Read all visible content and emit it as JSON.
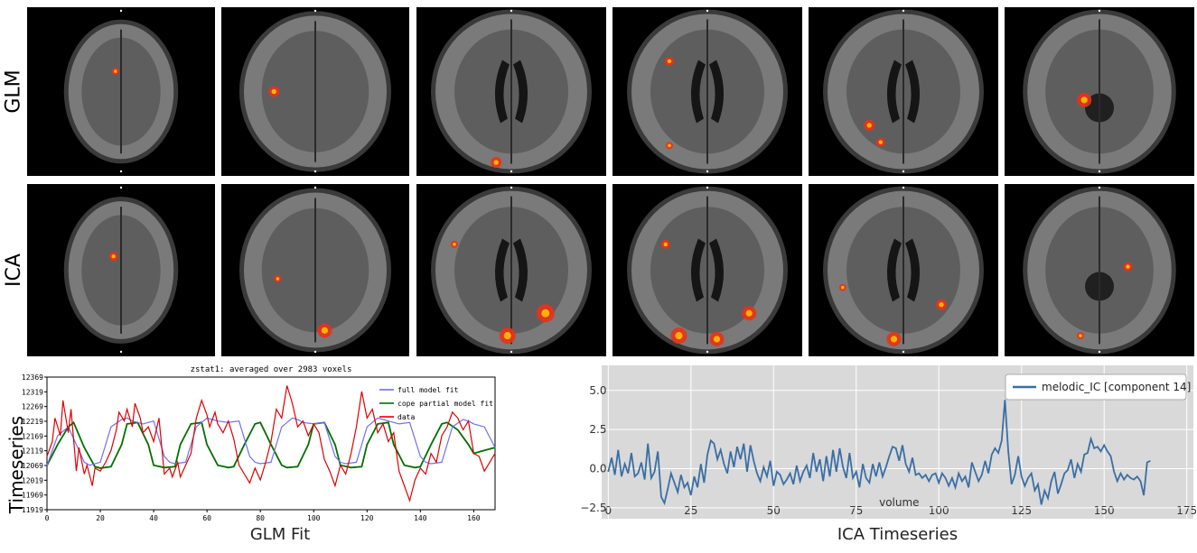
{
  "figure": {
    "row_labels": [
      "GLM",
      "ICA"
    ],
    "captions": {
      "left": "GLM Fit",
      "right": "ICA Timeseries"
    },
    "side_label": "Timeseries"
  },
  "brain_panels": {
    "columns": 6,
    "rows": [
      "GLM",
      "ICA"
    ]
  },
  "colors": {
    "activation": "#e8321a",
    "activation_hot": "#ffb000",
    "glm_full_fit": "#7070f0",
    "glm_cope_fit": "#007000",
    "glm_data": "#e00000",
    "ica_line": "#3a6ea5",
    "ica_bg": "#d9d9d9"
  },
  "chart_data": [
    {
      "type": "line",
      "title": "zstat1: averaged over 2983 voxels",
      "xlabel": "",
      "ylabel": "",
      "xlim": [
        0,
        168
      ],
      "ylim": [
        11919,
        12369
      ],
      "xticks": [
        0,
        20,
        40,
        60,
        80,
        100,
        120,
        140,
        160
      ],
      "yticks": [
        11919,
        11969,
        12019,
        12069,
        12119,
        12169,
        12219,
        12269,
        12319,
        12369
      ],
      "legend_placement": "top-right",
      "grid": false,
      "series": [
        {
          "name": "full model fit",
          "color": "#7070f0",
          "x": [
            0,
            4,
            8,
            12,
            14,
            16,
            20,
            24,
            28,
            30,
            32,
            36,
            40,
            44,
            46,
            48,
            52,
            56,
            60,
            62,
            64,
            68,
            72,
            76,
            78,
            80,
            84,
            88,
            92,
            94,
            96,
            100,
            104,
            108,
            110,
            112,
            116,
            120,
            124,
            126,
            128,
            132,
            136,
            140,
            142,
            144,
            148,
            152,
            156,
            158,
            160,
            164,
            168
          ],
          "y": [
            12069,
            12170,
            12200,
            12120,
            12080,
            12070,
            12080,
            12200,
            12225,
            12230,
            12220,
            12210,
            12220,
            12100,
            12080,
            12075,
            12080,
            12200,
            12230,
            12225,
            12220,
            12215,
            12220,
            12100,
            12080,
            12075,
            12080,
            12200,
            12230,
            12225,
            12215,
            12210,
            12215,
            12100,
            12080,
            12075,
            12080,
            12200,
            12230,
            12225,
            12220,
            12210,
            12215,
            12100,
            12080,
            12075,
            12080,
            12200,
            12225,
            12220,
            12210,
            12200,
            12130
          ]
        },
        {
          "name": "cope partial model fit",
          "color": "#007000",
          "x": [
            0,
            4,
            8,
            10,
            14,
            18,
            20,
            24,
            28,
            30,
            34,
            38,
            40,
            44,
            48,
            50,
            54,
            58,
            60,
            64,
            68,
            70,
            74,
            78,
            80,
            84,
            88,
            90,
            94,
            98,
            100,
            104,
            108,
            110,
            114,
            118,
            120,
            124,
            128,
            130,
            134,
            138,
            140,
            144,
            148,
            150,
            154,
            158,
            160,
            164,
            168
          ],
          "y": [
            12069,
            12140,
            12200,
            12215,
            12130,
            12065,
            12060,
            12065,
            12140,
            12210,
            12215,
            12140,
            12070,
            12062,
            12065,
            12140,
            12210,
            12215,
            12140,
            12070,
            12062,
            12065,
            12140,
            12210,
            12215,
            12140,
            12070,
            12062,
            12065,
            12140,
            12210,
            12215,
            12140,
            12070,
            12062,
            12065,
            12140,
            12210,
            12215,
            12140,
            12070,
            12062,
            12065,
            12140,
            12210,
            12215,
            12190,
            12140,
            12110,
            12120,
            12130
          ]
        },
        {
          "name": "data",
          "color": "#e00000",
          "x": [
            0,
            2,
            3,
            5,
            6,
            8,
            9,
            11,
            12,
            14,
            15,
            17,
            18,
            20,
            22,
            24,
            26,
            27,
            29,
            30,
            32,
            33,
            35,
            36,
            38,
            40,
            42,
            44,
            46,
            47,
            49,
            50,
            52,
            54,
            56,
            58,
            60,
            61,
            63,
            64,
            66,
            68,
            70,
            72,
            74,
            76,
            78,
            80,
            82,
            84,
            86,
            88,
            90,
            92,
            94,
            96,
            98,
            100,
            102,
            104,
            106,
            108,
            110,
            112,
            114,
            116,
            118,
            120,
            122,
            124,
            126,
            128,
            130,
            132,
            134,
            136,
            138,
            140,
            142,
            144,
            146,
            148,
            150,
            152,
            154,
            156,
            158,
            160,
            162,
            164,
            166,
            168
          ],
          "y": [
            12100,
            12150,
            12230,
            12170,
            12290,
            12180,
            12260,
            12050,
            12130,
            12040,
            12070,
            12000,
            12060,
            12050,
            12080,
            12120,
            12190,
            12250,
            12220,
            12260,
            12200,
            12280,
            12230,
            12180,
            12200,
            12150,
            12230,
            12040,
            12060,
            12030,
            12080,
            12030,
            12070,
            12110,
            12230,
            12290,
            12240,
            12200,
            12250,
            12210,
            12180,
            12220,
            12160,
            12070,
            12040,
            12010,
            12060,
            12020,
            12080,
            12150,
            12260,
            12230,
            12340,
            12280,
            12200,
            12220,
            12170,
            12210,
            12180,
            12090,
            12050,
            12000,
            12070,
            12040,
            12110,
            12200,
            12320,
            12230,
            12260,
            12180,
            12210,
            12150,
            12180,
            12050,
            12000,
            11950,
            12020,
            12060,
            12040,
            12110,
            12080,
            12170,
            12200,
            12250,
            12230,
            12190,
            12220,
            12110,
            12100,
            12050,
            12080,
            12110
          ]
        }
      ]
    },
    {
      "type": "line",
      "title": "",
      "xlabel": "volume",
      "ylabel": "",
      "xlim": [
        -2,
        177
      ],
      "ylim": [
        -3.2,
        6.6
      ],
      "xticks": [
        0,
        25,
        50,
        75,
        100,
        125,
        150,
        175
      ],
      "yticks": [
        -2.5,
        0.0,
        2.5,
        5.0
      ],
      "ytick_labels": [
        "−2.5",
        "0.0",
        "2.5",
        "5.0"
      ],
      "legend_placement": "top-right",
      "grid": true,
      "series": [
        {
          "name": "melodic_IC [component 14]",
          "color": "#3a6ea5",
          "y": [
            -0.2,
            0.7,
            -0.4,
            1.2,
            -0.5,
            0.3,
            -0.3,
            1.0,
            -0.5,
            -0.3,
            0.4,
            -0.7,
            1.6,
            -0.6,
            -0.2,
            1.1,
            -1.8,
            -2.2,
            -1.3,
            -0.3,
            -0.9,
            -1.5,
            -0.4,
            -1.2,
            -0.9,
            -1.7,
            -0.5,
            -1.2,
            0.3,
            -0.9,
            0.9,
            1.8,
            1.6,
            0.6,
            1.2,
            0.3,
            -0.3,
            1.1,
            0.1,
            1.4,
            0.6,
            1.6,
            -0.2,
            1.5,
            0.5,
            -0.3,
            -0.8,
            0.1,
            -0.5,
            0.5,
            -1.1,
            -0.2,
            -0.4,
            -1.0,
            -0.7,
            -0.3,
            -1.0,
            0.2,
            -0.8,
            -0.2,
            0.2,
            -0.6,
            1.0,
            -0.2,
            0.6,
            -0.8,
            0.8,
            -0.5,
            1.2,
            -0.2,
            1.3,
            0.1,
            -0.6,
            1.0,
            -0.6,
            -0.2,
            -1.2,
            0.3,
            -0.6,
            -0.9,
            0.3,
            -0.5,
            0.4,
            -0.5,
            0.1,
            0.8,
            1.4,
            1.3,
            0.5,
            1.5,
            0.3,
            -0.2,
            0.7,
            -0.4,
            -0.3,
            -0.6,
            -0.4,
            -0.8,
            -0.4,
            -0.3,
            -0.9,
            -0.3,
            -0.6,
            -1.1,
            -0.6,
            -1.2,
            -0.3,
            -0.8,
            -0.5,
            -1.2,
            0.4,
            -0.2,
            -0.8,
            -0.4,
            0.5,
            -0.3,
            0.9,
            1.3,
            1.0,
            1.8,
            4.4,
            1.1,
            -1.0,
            -0.4,
            0.8,
            -0.5,
            -1.1,
            -0.6,
            -0.3,
            -1.4,
            -1.0,
            -2.3,
            -1.4,
            -1.9,
            -0.8,
            -0.2,
            -1.6,
            -1.0,
            -0.3,
            -0.1,
            0.6,
            -0.6,
            0.3,
            -0.2,
            0.9,
            1.0,
            1.9,
            1.3,
            1.4,
            1.1,
            1.5,
            1.1,
            0.8,
            -0.2,
            -0.8,
            -0.3,
            -0.7,
            -0.4,
            -0.6,
            -0.7,
            -0.5,
            -0.8,
            -1.7,
            0.4,
            0.5
          ]
        }
      ]
    }
  ]
}
